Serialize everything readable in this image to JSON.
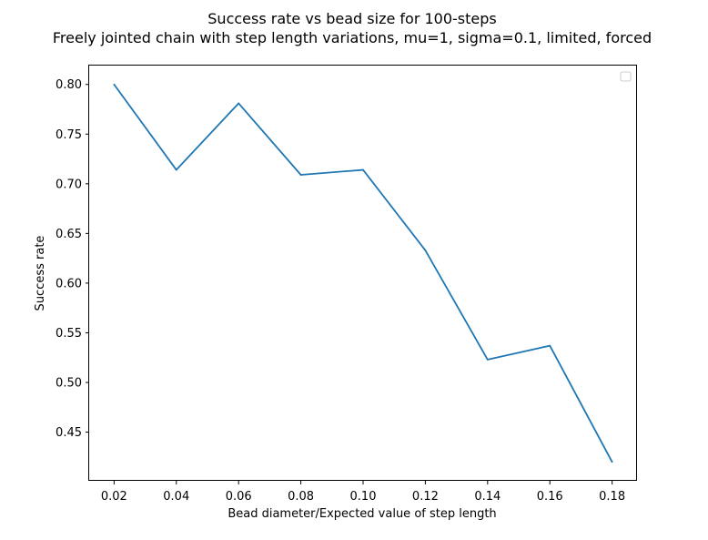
{
  "chart_data": {
    "type": "line",
    "title": "Success rate vs bead size for 100-steps",
    "subtitle": "Freely jointed chain with step length variations, mu=1, sigma=0.1, limited, forced",
    "xlabel": "Bead diameter/Expected value of step length",
    "ylabel": "Success rate",
    "x": [
      0.02,
      0.04,
      0.06,
      0.08,
      0.1,
      0.12,
      0.14,
      0.16,
      0.18
    ],
    "series": [
      {
        "values": [
          0.8,
          0.714,
          0.781,
          0.709,
          0.714,
          0.633,
          0.523,
          0.537,
          0.42
        ],
        "color": "#1f77b4"
      }
    ],
    "xlim": [
      0.012,
      0.188
    ],
    "ylim": [
      0.401,
      0.819
    ],
    "xticks": [
      0.02,
      0.04,
      0.06,
      0.08,
      0.1,
      0.12,
      0.14,
      0.16,
      0.18
    ],
    "xtick_labels": [
      "0.02",
      "0.04",
      "0.06",
      "0.08",
      "0.10",
      "0.12",
      "0.14",
      "0.16",
      "0.18"
    ],
    "yticks": [
      0.45,
      0.5,
      0.55,
      0.6,
      0.65,
      0.7,
      0.75,
      0.8
    ],
    "ytick_labels": [
      "0.45",
      "0.50",
      "0.55",
      "0.60",
      "0.65",
      "0.70",
      "0.75",
      "0.80"
    ],
    "grid": false,
    "legend": {
      "placement": "top-right",
      "entries": []
    }
  }
}
